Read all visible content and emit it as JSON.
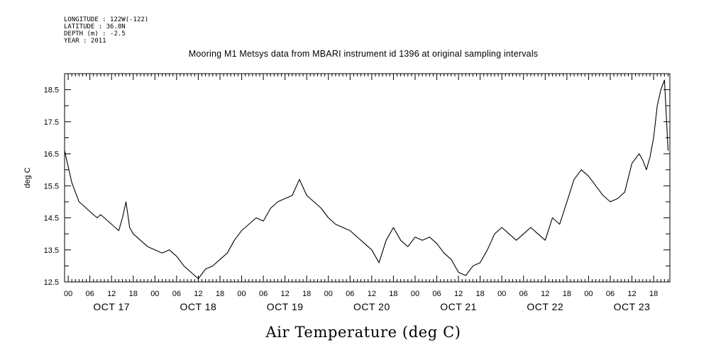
{
  "meta": {
    "longitude": "LONGITUDE : 122W(-122)",
    "latitude": "LATITUDE : 36.8N",
    "depth": "DEPTH (m) : -2.5",
    "year": "YEAR : 2011"
  },
  "chart_data": {
    "type": "line",
    "title": "Mooring M1 Metsys data from MBARI instrument id 1396 at original sampling intervals",
    "xlabel": "Air Temperature (deg C)",
    "ylabel": "deg C",
    "ylim": [
      12.5,
      19.0
    ],
    "y_ticks": [
      "12.5",
      "13.5",
      "14.5",
      "15.5",
      "16.5",
      "17.5",
      "18.5"
    ],
    "x_range_hours": [
      -1,
      166.5
    ],
    "hour_ticks": [
      "00",
      "06",
      "12",
      "18",
      "00",
      "06",
      "12",
      "18",
      "00",
      "06",
      "12",
      "18",
      "00",
      "06",
      "12",
      "18",
      "00",
      "06",
      "12",
      "18",
      "00",
      "06",
      "12",
      "18",
      "00",
      "06",
      "12",
      "18"
    ],
    "day_labels": [
      "OCT 17",
      "OCT 18",
      "OCT 19",
      "OCT 20",
      "OCT 21",
      "OCT 22",
      "OCT 23"
    ],
    "grid": false,
    "series": [
      {
        "x_hours": [
          -1,
          0,
          1,
          2,
          3,
          4,
          5,
          6,
          7,
          8,
          9,
          10,
          11,
          12,
          13,
          14,
          15,
          16,
          17,
          18,
          19,
          20,
          21,
          22,
          24,
          26,
          28,
          30,
          32,
          34,
          36,
          38,
          40,
          42,
          44,
          45,
          46,
          48,
          50,
          52,
          54,
          56,
          58,
          60,
          62,
          64,
          66,
          68,
          70,
          72,
          74,
          76,
          78,
          80,
          82,
          84,
          86,
          88,
          90,
          92,
          94,
          96,
          98,
          100,
          102,
          104,
          106,
          108,
          110,
          112,
          114,
          116,
          118,
          120,
          122,
          124,
          126,
          128,
          130,
          132,
          134,
          136,
          138,
          140,
          142,
          144,
          146,
          148,
          150,
          152,
          154,
          156,
          158,
          159,
          160,
          161,
          162,
          163,
          164,
          165,
          166
        ],
        "values": [
          16.6,
          16.1,
          15.6,
          15.3,
          15.0,
          14.9,
          14.8,
          14.7,
          14.6,
          14.5,
          14.6,
          14.5,
          14.4,
          14.3,
          14.2,
          14.1,
          14.5,
          15.0,
          14.2,
          14.0,
          13.9,
          13.8,
          13.7,
          13.6,
          13.5,
          13.4,
          13.5,
          13.3,
          13.0,
          12.8,
          12.6,
          12.9,
          13.0,
          13.2,
          13.4,
          13.6,
          13.8,
          14.1,
          14.3,
          14.5,
          14.4,
          14.8,
          15.0,
          15.1,
          15.2,
          15.7,
          15.2,
          15.0,
          14.8,
          14.5,
          14.3,
          14.2,
          14.1,
          13.9,
          13.7,
          13.5,
          13.1,
          13.8,
          14.2,
          13.8,
          13.6,
          13.9,
          13.8,
          13.9,
          13.7,
          13.4,
          13.2,
          12.8,
          12.7,
          13.0,
          13.1,
          13.5,
          14.0,
          14.2,
          14.0,
          13.8,
          14.0,
          14.2,
          14.0,
          13.8,
          14.5,
          14.3,
          15.0,
          15.7,
          16.0,
          15.8,
          15.5,
          15.2,
          15.0,
          15.1,
          15.3,
          16.2,
          16.5,
          16.3,
          16.0,
          16.4,
          17.0,
          18.0,
          18.5,
          18.8,
          16.6
        ]
      }
    ]
  }
}
